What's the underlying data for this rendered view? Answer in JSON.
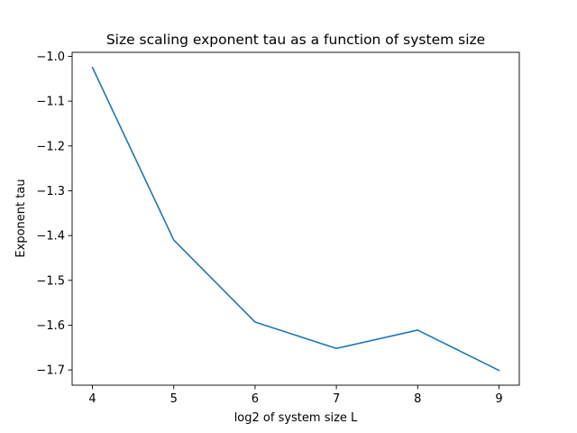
{
  "chart_data": {
    "type": "line",
    "title": "Size scaling exponent tau as a function of system size",
    "xlabel": "log2 of system size L",
    "ylabel": "Exponent tau",
    "x": [
      4,
      5,
      6,
      7,
      8,
      9
    ],
    "series": [
      {
        "values": [
          -1.025,
          -1.41,
          -1.593,
          -1.652,
          -1.611,
          -1.701
        ],
        "color": "#1f77b4"
      }
    ],
    "xlim": [
      3.75,
      9.25
    ],
    "ylim": [
      -1.734,
      -0.991
    ],
    "xticks": [
      4,
      5,
      6,
      7,
      8,
      9
    ],
    "xtick_labels": [
      "4",
      "5",
      "6",
      "7",
      "8",
      "9"
    ],
    "yticks": [
      -1.0,
      -1.1,
      -1.2,
      -1.3,
      -1.4,
      -1.5,
      -1.6,
      -1.7
    ],
    "ytick_labels": [
      "−1.0",
      "−1.1",
      "−1.2",
      "−1.3",
      "−1.4",
      "−1.5",
      "−1.6",
      "−1.7"
    ],
    "grid": false,
    "legend": false
  }
}
